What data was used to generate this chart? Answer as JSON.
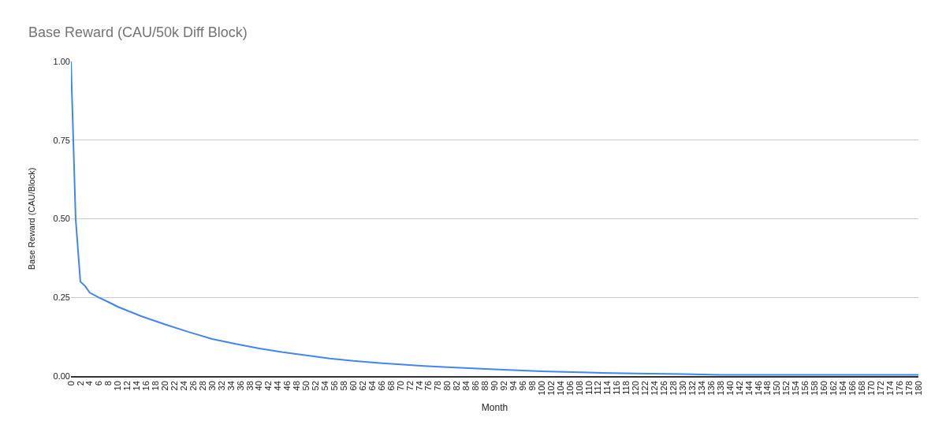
{
  "chart_data": {
    "type": "line",
    "title": "Base Reward (CAU/50k Diff Block)",
    "xlabel": "Month",
    "ylabel": "Base Reward (CAU/Block)",
    "x": [
      0,
      1,
      2,
      3,
      4,
      6,
      8,
      10,
      15,
      20,
      25,
      30,
      35,
      40,
      45,
      50,
      55,
      60,
      65,
      70,
      75,
      80,
      90,
      100,
      110,
      120,
      130,
      138,
      150,
      160,
      170,
      180
    ],
    "series": [
      {
        "color": "#4285f4",
        "values": [
          1.0,
          0.5,
          0.3,
          0.286,
          0.265,
          0.249,
          0.235,
          0.22,
          0.19,
          0.164,
          0.14,
          0.118,
          0.102,
          0.088,
          0.076,
          0.066,
          0.056,
          0.048,
          0.042,
          0.037,
          0.032,
          0.028,
          0.021,
          0.015,
          0.011,
          0.008,
          0.006,
          0.004,
          0.004,
          0.004,
          0.004,
          0.004
        ]
      }
    ],
    "xlim": [
      0,
      180
    ],
    "xticks": [
      0,
      2,
      4,
      6,
      8,
      10,
      12,
      14,
      16,
      18,
      20,
      22,
      24,
      26,
      28,
      30,
      32,
      34,
      36,
      38,
      40,
      42,
      44,
      46,
      48,
      50,
      52,
      54,
      56,
      58,
      60,
      62,
      64,
      66,
      68,
      70,
      72,
      74,
      76,
      78,
      80,
      82,
      84,
      86,
      88,
      90,
      92,
      94,
      96,
      98,
      100,
      102,
      104,
      106,
      108,
      110,
      112,
      114,
      116,
      118,
      120,
      122,
      124,
      126,
      128,
      130,
      132,
      134,
      136,
      138,
      140,
      142,
      144,
      146,
      148,
      150,
      152,
      154,
      156,
      158,
      160,
      162,
      164,
      166,
      168,
      170,
      172,
      174,
      176,
      178,
      180
    ],
    "ylim": [
      0,
      1
    ],
    "yticks": [
      {
        "value": 0,
        "label": "0.00"
      },
      {
        "value": 0.25,
        "label": "0.25"
      },
      {
        "value": 0.5,
        "label": "0.50"
      },
      {
        "value": 0.75,
        "label": "0.75"
      },
      {
        "value": 1,
        "label": "1.00"
      }
    ],
    "grid": "y",
    "marker": "none",
    "line_style": "solid"
  }
}
